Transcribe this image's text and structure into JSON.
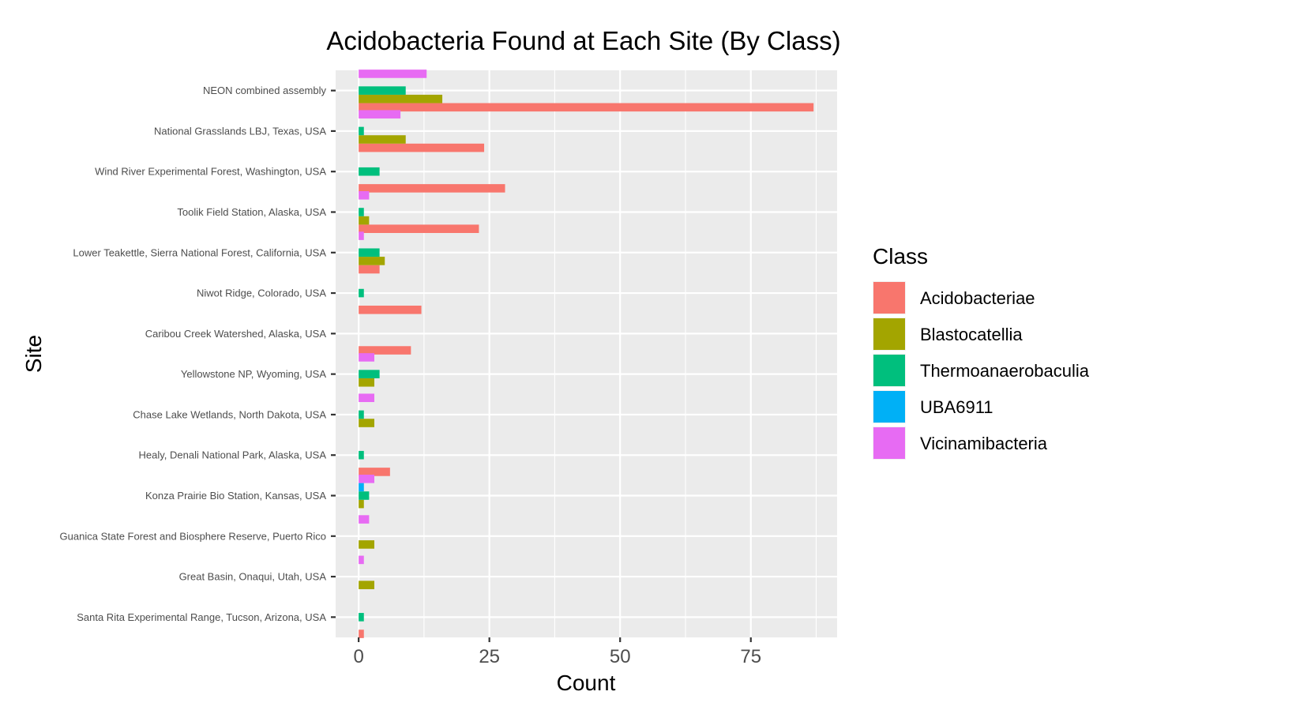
{
  "chart_data": {
    "type": "bar",
    "orientation": "horizontal",
    "title": "Acidobacteria Found at Each Site (By Class)",
    "xlabel": "Count",
    "ylabel": "Site",
    "xlim": [
      -4.4,
      91.5
    ],
    "xticks": [
      0,
      25,
      50,
      75
    ],
    "xtick_labels": [
      "0",
      "25",
      "50",
      "75"
    ],
    "grid": true,
    "legend": {
      "title": "Class",
      "position": "right"
    },
    "categories": [
      "NEON combined assembly",
      "National Grasslands LBJ, Texas, USA",
      "Wind River Experimental Forest, Washington, USA",
      "Toolik Field Station, Alaska, USA",
      "Lower Teakettle, Sierra National Forest, California, USA",
      "Niwot Ridge, Colorado, USA",
      "Caribou Creek Watershed, Alaska, USA",
      "Yellowstone NP, Wyoming, USA",
      "Chase Lake Wetlands, North Dakota, USA",
      "Healy, Denali National Park, Alaska, USA",
      "Konza Prairie Bio Station, Kansas, USA",
      "Guanica State Forest and Biosphere Reserve, Puerto Rico",
      "Great Basin, Onaqui, Utah, USA",
      "Santa Rita Experimental Range, Tucson, Arizona, USA"
    ],
    "series": [
      {
        "name": "Acidobacteriae",
        "color": "#F8766D",
        "values": [
          87,
          24,
          28,
          23,
          4,
          12,
          10,
          0,
          0,
          6,
          0,
          0,
          0,
          1
        ]
      },
      {
        "name": "Blastocatellia",
        "color": "#A3A500",
        "values": [
          16,
          9,
          0,
          2,
          5,
          0,
          0,
          3,
          3,
          0,
          1,
          3,
          3,
          0
        ]
      },
      {
        "name": "Thermoanaerobaculia",
        "color": "#00BF7D",
        "values": [
          9,
          1,
          4,
          1,
          4,
          1,
          0,
          4,
          1,
          1,
          2,
          0,
          0,
          1
        ]
      },
      {
        "name": "UBA6911",
        "color": "#00B0F6",
        "values": [
          0,
          0,
          0,
          0,
          0,
          0,
          0,
          0,
          0,
          0,
          1,
          0,
          0,
          0
        ]
      },
      {
        "name": "Vicinamibacteria",
        "color": "#E76BF3",
        "values": [
          13,
          8,
          0,
          2,
          1,
          0,
          0,
          3,
          3,
          0,
          3,
          2,
          1,
          0
        ]
      }
    ]
  }
}
